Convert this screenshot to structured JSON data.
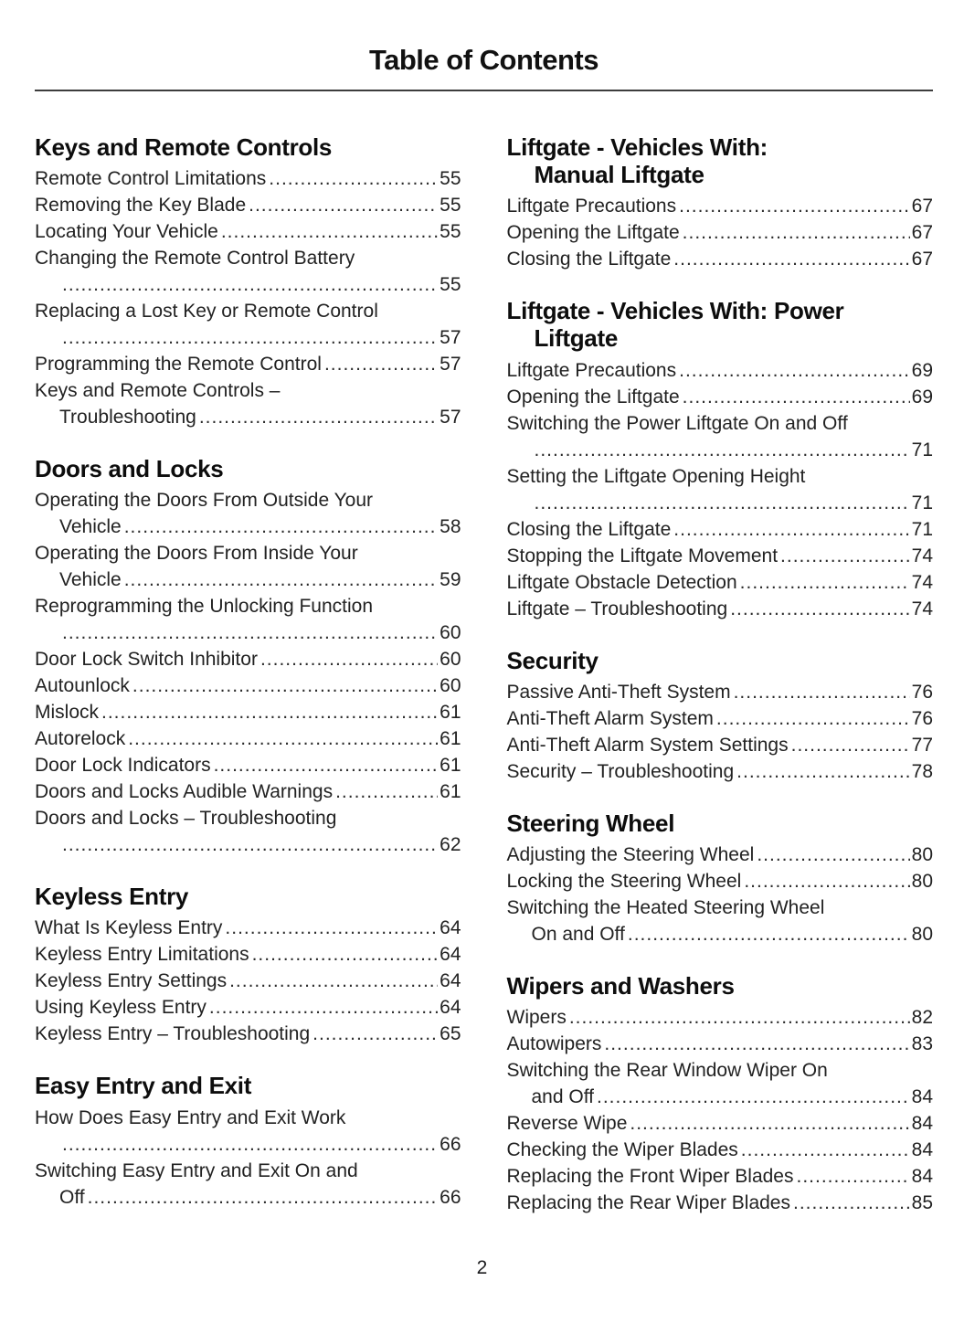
{
  "page": {
    "title": "Table of Contents",
    "page_number": "2"
  },
  "colors": {
    "text": "#1c1c1e",
    "background": "#ffffff"
  },
  "columns": [
    {
      "sections": [
        {
          "heading_lines": [
            "Keys and Remote Controls"
          ],
          "entries": [
            {
              "text": "Remote Control Limitations",
              "page": "55"
            },
            {
              "text": "Removing the Key Blade",
              "page": "55"
            },
            {
              "text": "Locating Your Vehicle",
              "page": "55"
            },
            {
              "text": "Changing the Remote Control Battery",
              "cont": "",
              "page": "55"
            },
            {
              "text": "Replacing a Lost Key or Remote Control",
              "cont": "",
              "page": "57"
            },
            {
              "text": "Programming the Remote Control",
              "page": "57"
            },
            {
              "text": "Keys and Remote Controls –",
              "cont": "Troubleshooting",
              "page": "57"
            }
          ]
        },
        {
          "heading_lines": [
            "Doors and Locks"
          ],
          "entries": [
            {
              "text": "Operating the Doors From Outside Your",
              "cont": "Vehicle",
              "page": "58"
            },
            {
              "text": "Operating the Doors From Inside Your",
              "cont": "Vehicle",
              "page": "59"
            },
            {
              "text": "Reprogramming the Unlocking Function",
              "cont": "",
              "page": "60"
            },
            {
              "text": "Door Lock Switch Inhibitor",
              "page": "60"
            },
            {
              "text": "Autounlock",
              "page": "60"
            },
            {
              "text": "Mislock",
              "page": "61"
            },
            {
              "text": "Autorelock",
              "page": "61"
            },
            {
              "text": "Door Lock Indicators",
              "page": "61"
            },
            {
              "text": "Doors and Locks Audible Warnings",
              "page": "61"
            },
            {
              "text": "Doors and Locks – Troubleshooting",
              "cont": "",
              "page": "62"
            }
          ]
        },
        {
          "heading_lines": [
            "Keyless Entry"
          ],
          "entries": [
            {
              "text": "What Is Keyless Entry",
              "page": "64"
            },
            {
              "text": "Keyless Entry Limitations",
              "page": "64"
            },
            {
              "text": "Keyless Entry Settings",
              "page": "64"
            },
            {
              "text": "Using Keyless Entry",
              "page": "64"
            },
            {
              "text": "Keyless Entry – Troubleshooting",
              "page": "65"
            }
          ]
        },
        {
          "heading_lines": [
            "Easy Entry and Exit"
          ],
          "entries": [
            {
              "text": "How Does Easy Entry and Exit Work",
              "cont": "",
              "page": "66"
            },
            {
              "text": "Switching Easy Entry and Exit On and",
              "cont": "Off",
              "page": "66"
            }
          ]
        }
      ]
    },
    {
      "sections": [
        {
          "heading_lines": [
            "Liftgate - Vehicles With:",
            "Manual Liftgate"
          ],
          "entries": [
            {
              "text": "Liftgate Precautions",
              "page": "67"
            },
            {
              "text": "Opening the Liftgate",
              "page": "67"
            },
            {
              "text": "Closing the Liftgate",
              "page": "67"
            }
          ]
        },
        {
          "heading_lines": [
            "Liftgate - Vehicles With: Power",
            "Liftgate"
          ],
          "entries": [
            {
              "text": "Liftgate Precautions",
              "page": "69"
            },
            {
              "text": "Opening the Liftgate",
              "page": "69"
            },
            {
              "text": "Switching the Power Liftgate On and Off",
              "cont": "",
              "page": "71"
            },
            {
              "text": "Setting the Liftgate Opening Height",
              "cont": "",
              "page": "71"
            },
            {
              "text": "Closing the Liftgate",
              "page": "71"
            },
            {
              "text": "Stopping the Liftgate Movement",
              "page": "74"
            },
            {
              "text": "Liftgate Obstacle Detection",
              "page": "74"
            },
            {
              "text": "Liftgate – Troubleshooting",
              "page": "74"
            }
          ]
        },
        {
          "heading_lines": [
            "Security"
          ],
          "entries": [
            {
              "text": "Passive Anti-Theft System",
              "page": "76"
            },
            {
              "text": "Anti-Theft Alarm System",
              "page": "76"
            },
            {
              "text": "Anti-Theft Alarm System Settings",
              "page": "77"
            },
            {
              "text": "Security – Troubleshooting",
              "page": "78"
            }
          ]
        },
        {
          "heading_lines": [
            "Steering Wheel"
          ],
          "entries": [
            {
              "text": "Adjusting the Steering Wheel",
              "page": "80"
            },
            {
              "text": "Locking the Steering Wheel",
              "page": "80"
            },
            {
              "text": "Switching the Heated Steering Wheel",
              "cont": "On and Off",
              "page": "80"
            }
          ]
        },
        {
          "heading_lines": [
            "Wipers and Washers"
          ],
          "entries": [
            {
              "text": "Wipers",
              "page": "82"
            },
            {
              "text": "Autowipers",
              "page": "83"
            },
            {
              "text": "Switching the Rear Window Wiper On",
              "cont": "and Off",
              "page": "84"
            },
            {
              "text": "Reverse Wipe",
              "page": "84"
            },
            {
              "text": "Checking the Wiper Blades",
              "page": "84"
            },
            {
              "text": "Replacing the Front Wiper Blades",
              "page": "84"
            },
            {
              "text": "Replacing the Rear Wiper Blades",
              "page": "85"
            }
          ]
        }
      ]
    }
  ]
}
